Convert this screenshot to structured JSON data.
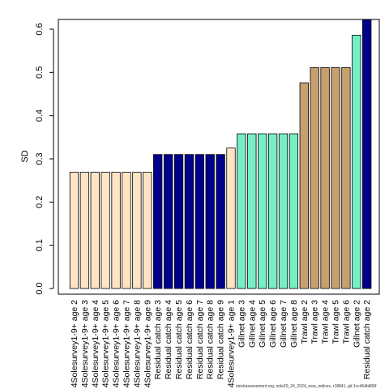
{
  "chart_data": {
    "type": "bar",
    "ylabel": "SD",
    "xlabel": "",
    "ylim": [
      0,
      0.62
    ],
    "yticks": [
      "0.0",
      "0.1",
      "0.2",
      "0.3",
      "0.4",
      "0.5",
      "0.6"
    ],
    "ytick_values": [
      0,
      0.1,
      0.2,
      0.3,
      0.4,
      0.5,
      0.6
    ],
    "grid": false,
    "categories": [
      "4Solesurvey1-9+ age 2",
      "4Solesurvey1-9+ age 3",
      "4Solesurvey1-9+ age 4",
      "4Solesurvey1-9+ age 5",
      "4Solesurvey1-9+ age 6",
      "4Solesurvey1-9+ age 7",
      "4Solesurvey1-9+ age 8",
      "4Solesurvey1-9+ age 9",
      "Residual catch age 3",
      "Residual catch age 4",
      "Residual catch age 5",
      "Residual catch age 6",
      "Residual catch age 7",
      "Residual catch age 8",
      "Residual catch age 9",
      "4Solesurvey1-9+ age 1",
      "Gillnet age 3",
      "Gillnet age 4",
      "Gillnet age 5",
      "Gillnet age 6",
      "Gillnet age 7",
      "Gillnet age 8",
      "Trawl age 2",
      "Trawl age 3",
      "Trawl age 4",
      "Trawl age 5",
      "Trawl age 6",
      "Gillnet age 2",
      "Residual catch age 2"
    ],
    "values": [
      0.269,
      0.269,
      0.269,
      0.269,
      0.269,
      0.269,
      0.269,
      0.269,
      0.31,
      0.31,
      0.31,
      0.31,
      0.31,
      0.31,
      0.31,
      0.325,
      0.358,
      0.358,
      0.358,
      0.358,
      0.358,
      0.358,
      0.476,
      0.511,
      0.511,
      0.511,
      0.511,
      0.586,
      0.63
    ],
    "bar_colors": [
      "#FFE4C4",
      "#FFE4C4",
      "#FFE4C4",
      "#FFE4C4",
      "#FFE4C4",
      "#FFE4C4",
      "#FFE4C4",
      "#FFE4C4",
      "#00008B",
      "#00008B",
      "#00008B",
      "#00008B",
      "#00008B",
      "#00008B",
      "#00008B",
      "#FFE4C4",
      "#76EEC6",
      "#76EEC6",
      "#76EEC6",
      "#76EEC6",
      "#76EEC6",
      "#76EEC6",
      "#C8A070",
      "#C8A070",
      "#C8A070",
      "#C8A070",
      "#C8A070",
      "#76EEC6",
      "#00008B"
    ]
  },
  "footer_text": "stockassessment.org, sole20_24_2024_new_indices, r18841, git:1cc464b806f"
}
